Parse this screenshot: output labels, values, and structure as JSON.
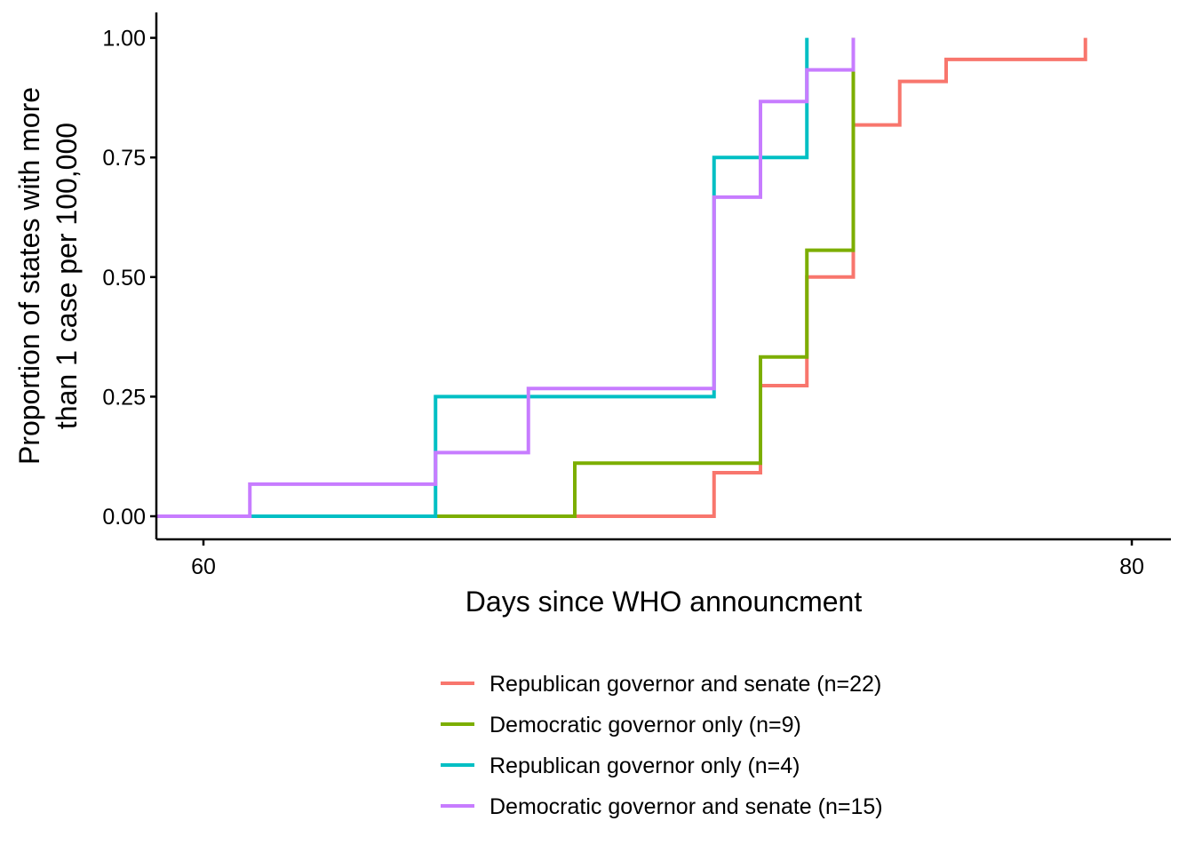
{
  "chart_data": {
    "type": "line",
    "step": true,
    "xlabel": "Days since WHO announcment",
    "ylabel_lines": [
      "Proportion of states with more",
      "than 1 case  per 100,000"
    ],
    "xlim": [
      59,
      80.7
    ],
    "ylim": [
      -0.05,
      1.05
    ],
    "x_ticks": [
      60,
      80
    ],
    "x_tick_labels": [
      "60",
      "80"
    ],
    "y_ticks": [
      0,
      0.25,
      0.5,
      0.75,
      1.0
    ],
    "y_tick_labels": [
      "0.00",
      "0.25",
      "0.50",
      "0.75",
      "1.00"
    ],
    "grid": false,
    "legend_position": "bottom",
    "series": [
      {
        "name": "Republican governor and senate (n=22)",
        "color": "#F8766D",
        "x": [
          59,
          71,
          72,
          73,
          74,
          75,
          76,
          77,
          78,
          79
        ],
        "y": [
          0,
          0.091,
          0.273,
          0.5,
          0.818,
          0.909,
          0.955,
          0.955,
          0.955,
          1.0
        ],
        "end_x": 79
      },
      {
        "name": "Democratic governor only (n=9)",
        "color": "#7CAE00",
        "x": [
          59,
          68,
          72,
          73,
          74
        ],
        "y": [
          0,
          0.111,
          0.333,
          0.556,
          1.0
        ],
        "end_x": 74
      },
      {
        "name": "Republican governor only (n=4)",
        "color": "#00BFC4",
        "x": [
          59,
          65,
          71,
          73
        ],
        "y": [
          0,
          0.25,
          0.75,
          1.0
        ],
        "end_x": 73
      },
      {
        "name": "Democratic governor and senate (n=15)",
        "color": "#C77CFF",
        "x": [
          59,
          61,
          65,
          67,
          71,
          72,
          73,
          74
        ],
        "y": [
          0,
          0.067,
          0.133,
          0.267,
          0.667,
          0.867,
          0.933,
          1.0
        ],
        "end_x": 74
      }
    ]
  }
}
